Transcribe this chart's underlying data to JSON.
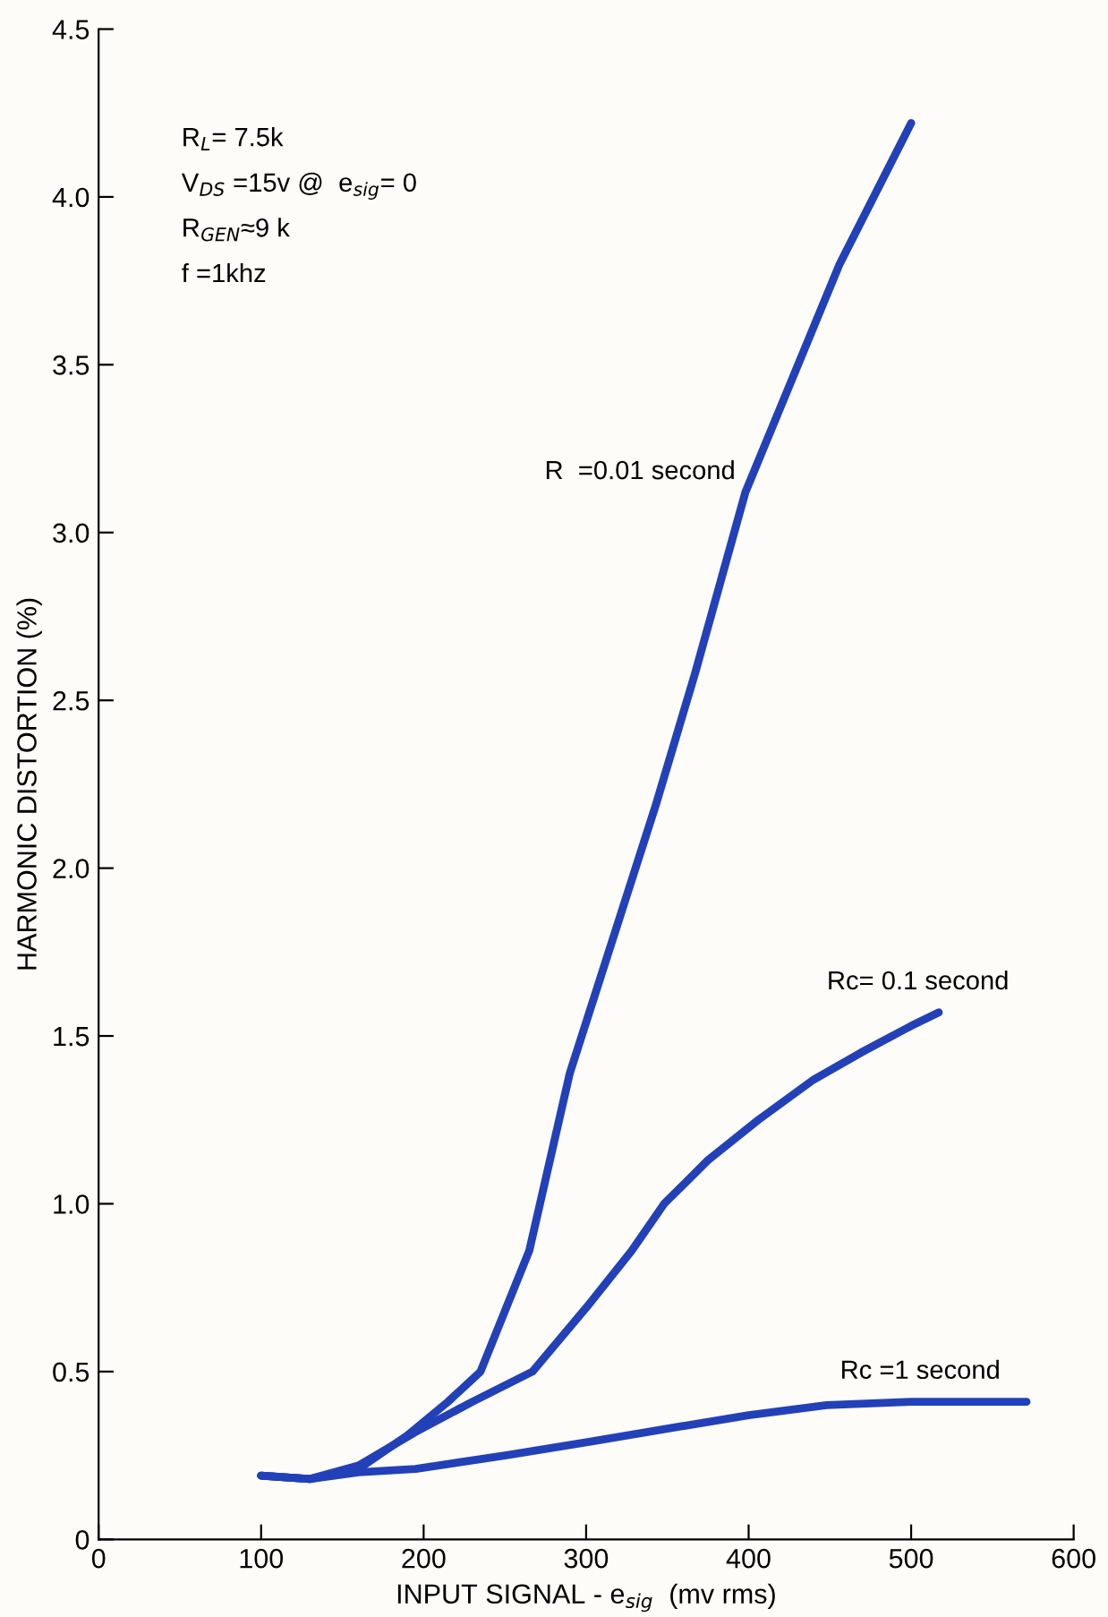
{
  "chart_data": {
    "type": "line",
    "xlabel": "INPUT SIGNAL - e$_{sig}$  (mv rms)",
    "ylabel": "HARMONIC DISTORTION (%)",
    "xlim": [
      0,
      600
    ],
    "ylim": [
      0,
      4.5
    ],
    "xticks": [
      0,
      100,
      200,
      300,
      400,
      500,
      600
    ],
    "yticks": [
      0,
      {
        "value": 0.5,
        "label": "0.5"
      },
      {
        "value": 1.0,
        "label": "1.0"
      },
      {
        "value": 1.5,
        "label": "1.5"
      },
      {
        "value": 2.0,
        "label": "2.0"
      },
      {
        "value": 2.5,
        "label": "2.5"
      },
      {
        "value": 3.0,
        "label": "3.0"
      },
      {
        "value": 3.5,
        "label": "3.5"
      },
      {
        "value": 4.0,
        "label": "4.0"
      },
      {
        "value": 4.5,
        "label": "4.5"
      }
    ],
    "grid": false,
    "legend": false,
    "marker": "none",
    "line_style": "solid",
    "annotations": [
      "R$_{L}$= 7.5k",
      "V$_{DS}$ =15v @  e$_{sig}$= 0",
      "R$_{GEN}$≈9 k",
      "f =1khz"
    ],
    "series": [
      {
        "name": "R  =0.01 second",
        "color": "#2241b8",
        "x": [
          100,
          130,
          160,
          190,
          215,
          235,
          265,
          290,
          343,
          367,
          398,
          456,
          500
        ],
        "values": [
          0.19,
          0.18,
          0.21,
          0.31,
          0.41,
          0.5,
          0.86,
          1.39,
          2.19,
          2.58,
          3.12,
          3.8,
          4.22
        ]
      },
      {
        "name": "Rc= 0.1 second",
        "color": "#2241b8",
        "x": [
          100,
          130,
          160,
          195,
          230,
          267,
          300,
          328,
          348,
          375,
          406,
          440,
          469,
          500,
          517
        ],
        "values": [
          0.19,
          0.18,
          0.22,
          0.32,
          0.41,
          0.5,
          0.69,
          0.86,
          1.0,
          1.13,
          1.25,
          1.37,
          1.45,
          1.53,
          1.57
        ]
      },
      {
        "name": "Rc =1 second",
        "color": "#2241b8",
        "x": [
          100,
          130,
          160,
          195,
          250,
          301,
          350,
          400,
          448,
          500,
          571
        ],
        "values": [
          0.19,
          0.18,
          0.2,
          0.21,
          0.25,
          0.29,
          0.33,
          0.37,
          0.4,
          0.41,
          0.41
        ]
      }
    ]
  }
}
